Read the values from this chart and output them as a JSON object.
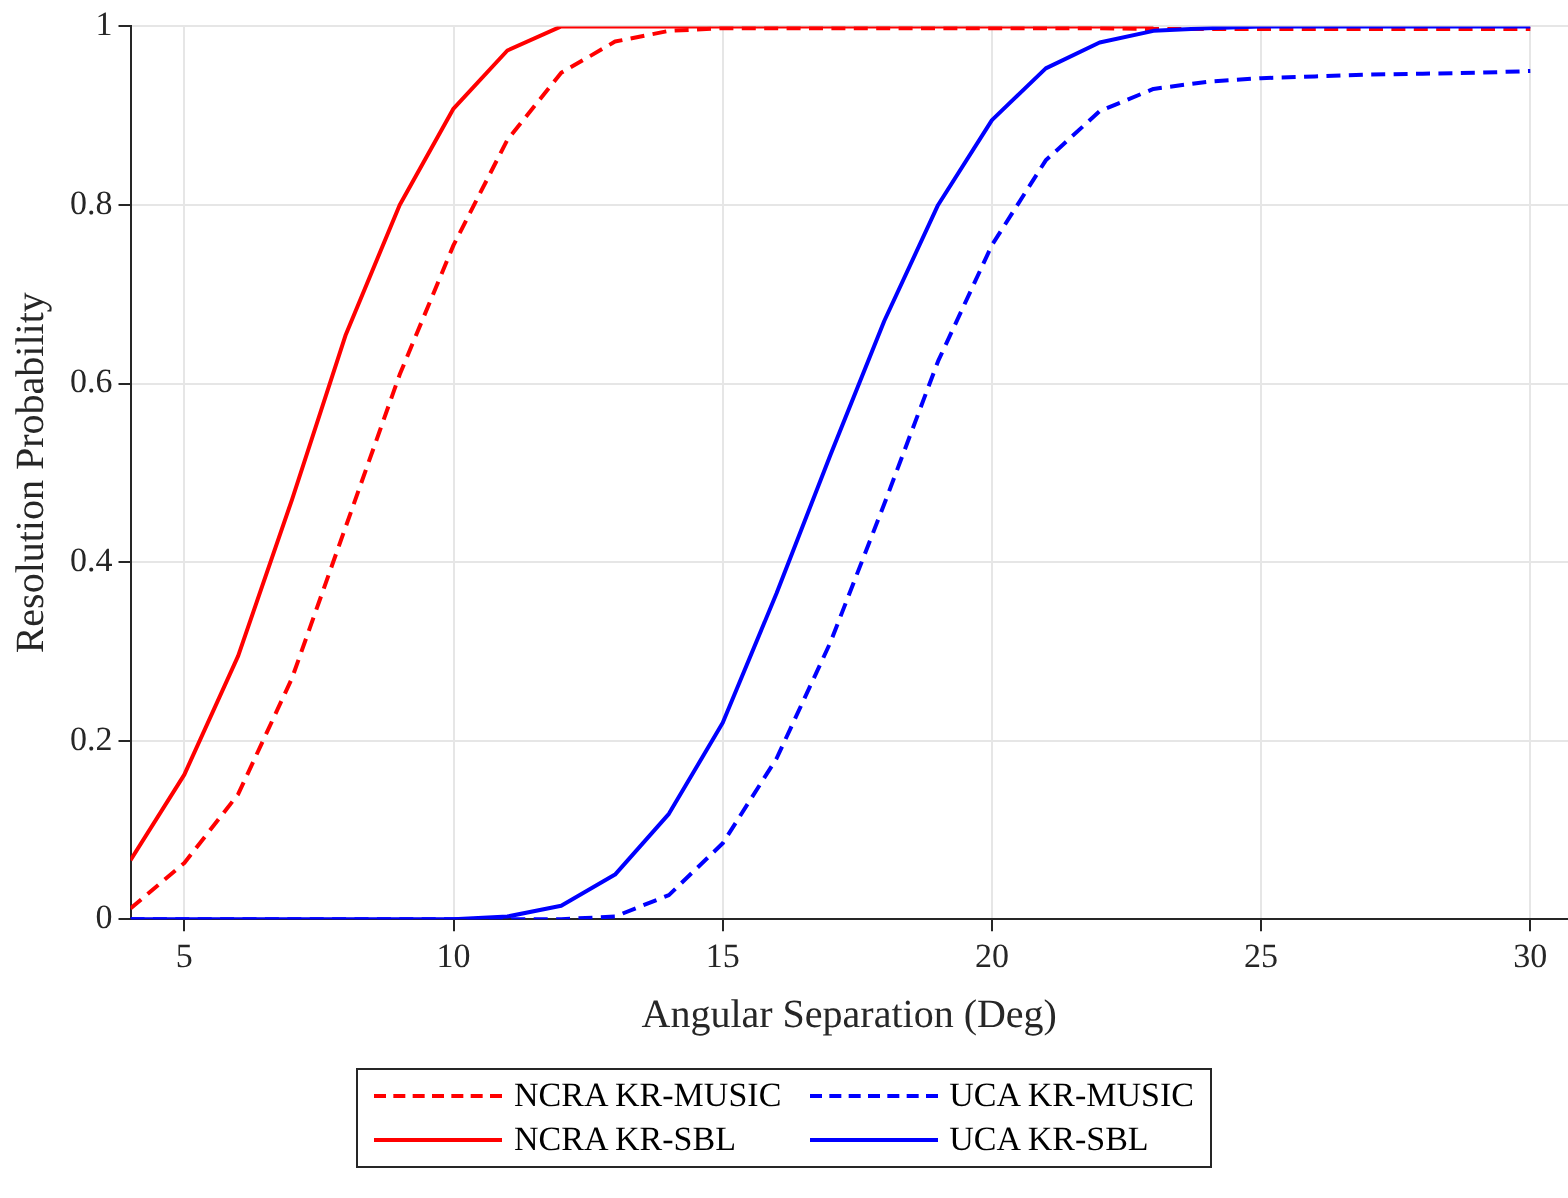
{
  "chart_data": {
    "type": "line",
    "xlabel": "Angular Separation (Deg)",
    "ylabel": "Resolution Probability",
    "x": [
      4,
      5,
      6,
      7,
      8,
      9,
      10,
      11,
      12,
      13,
      14,
      15,
      16,
      17,
      18,
      19,
      20,
      21,
      22,
      23,
      24,
      25,
      26,
      27,
      28,
      29,
      30
    ],
    "xlim": [
      4,
      30.7
    ],
    "xticks": [
      5,
      10,
      15,
      20,
      25,
      30
    ],
    "ylim": [
      0,
      1
    ],
    "yticks": [
      0,
      0.2,
      0.4,
      0.6,
      0.8,
      1
    ],
    "grid": true,
    "legend": "bottom",
    "marker": "none",
    "series": [
      {
        "name": "NCRA KR-MUSIC",
        "color": "#ff0000",
        "line_style": "dashed",
        "values": [
          0.012,
          0.063,
          0.14,
          0.27,
          0.44,
          0.61,
          0.755,
          0.873,
          0.948,
          0.983,
          0.995,
          0.998,
          0.998,
          0.998,
          0.998,
          0.998,
          0.998,
          0.998,
          0.998,
          0.997,
          0.997,
          0.997,
          0.997,
          0.997,
          0.997,
          0.997,
          0.997
        ]
      },
      {
        "name": "UCA KR-MUSIC",
        "color": "#0000ff",
        "line_style": "dashed",
        "values": [
          0,
          0,
          0,
          0,
          0,
          0,
          0,
          0,
          0,
          0.003,
          0.027,
          0.085,
          0.18,
          0.31,
          0.465,
          0.625,
          0.755,
          0.85,
          0.905,
          0.93,
          0.938,
          0.942,
          0.944,
          0.946,
          0.947,
          0.948,
          0.95
        ]
      },
      {
        "name": "NCRA KR-SBL",
        "color": "#ff0000",
        "line_style": "solid",
        "values": [
          0.066,
          0.162,
          0.295,
          0.47,
          0.655,
          0.8,
          0.908,
          0.973,
          1,
          1,
          1,
          1,
          1,
          1,
          1,
          1,
          1,
          1,
          1,
          1,
          null,
          null,
          null,
          null,
          null,
          null,
          null
        ]
      },
      {
        "name": "UCA KR-SBL",
        "color": "#0000ff",
        "line_style": "solid",
        "values": [
          0,
          0,
          0,
          0,
          0,
          0,
          0,
          0.003,
          0.015,
          0.05,
          0.118,
          0.22,
          0.365,
          0.52,
          0.67,
          0.8,
          0.895,
          0.953,
          0.982,
          0.995,
          0.998,
          1,
          1,
          1,
          1,
          1,
          1
        ]
      }
    ]
  }
}
